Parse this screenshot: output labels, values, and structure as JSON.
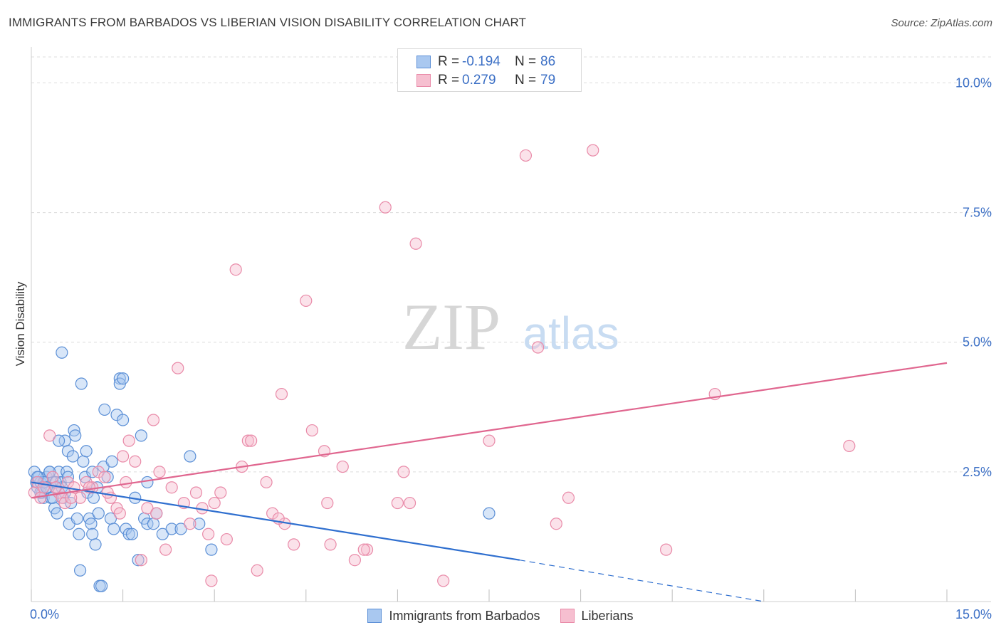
{
  "title": "IMMIGRANTS FROM BARBADOS VS LIBERIAN VISION DISABILITY CORRELATION CHART",
  "source": "Source: ZipAtlas.com",
  "watermark": {
    "zip": "ZIP",
    "atlas": "atlas"
  },
  "legend_top": [
    {
      "r_label": "R =",
      "r_value": "-0.194",
      "n_label": "N =",
      "n_value": "86"
    },
    {
      "r_label": "R =",
      "r_value": "0.279",
      "n_label": "N =",
      "n_value": "79"
    }
  ],
  "legend_bottom": [
    "Immigrants from Barbados",
    "Liberians"
  ],
  "colors": {
    "blue_fill": "#a9c8f0",
    "blue_stroke": "#5b8fd6",
    "blue_line": "#2f6fcf",
    "pink_fill": "#f6bfd0",
    "pink_stroke": "#e98aa8",
    "pink_line": "#e0668f",
    "tick_label": "#3b6fc5",
    "grid": "#dcdcdc"
  },
  "chart_data": {
    "type": "scatter",
    "xlabel": "",
    "ylabel": "Vision Disability",
    "xlim": [
      0,
      15
    ],
    "ylim": [
      0,
      10.5
    ],
    "x_tick_labels": [
      "0.0%",
      "15.0%"
    ],
    "y_ticks": [
      2.5,
      5.0,
      7.5,
      10.0
    ],
    "y_tick_labels": [
      "2.5%",
      "5.0%",
      "7.5%",
      "10.0%"
    ],
    "series": [
      {
        "name": "Immigrants from Barbados",
        "color": "blue",
        "trend": {
          "x": [
            0,
            8.0
          ],
          "y": [
            2.3,
            0.8
          ],
          "dashed_to": [
            12.0,
            0.0
          ]
        },
        "points": [
          [
            0.05,
            2.5
          ],
          [
            0.08,
            2.3
          ],
          [
            0.1,
            2.2
          ],
          [
            0.12,
            2.4
          ],
          [
            0.15,
            2.3
          ],
          [
            0.18,
            2.1
          ],
          [
            0.2,
            2.0
          ],
          [
            0.22,
            2.3
          ],
          [
            0.25,
            2.4
          ],
          [
            0.28,
            2.2
          ],
          [
            0.3,
            2.5
          ],
          [
            0.32,
            2.0
          ],
          [
            0.35,
            2.3
          ],
          [
            0.38,
            1.8
          ],
          [
            0.4,
            2.2
          ],
          [
            0.42,
            1.7
          ],
          [
            0.45,
            2.5
          ],
          [
            0.48,
            2.3
          ],
          [
            0.5,
            2.2
          ],
          [
            0.52,
            2.0
          ],
          [
            0.55,
            3.1
          ],
          [
            0.58,
            2.5
          ],
          [
            0.6,
            2.9
          ],
          [
            0.62,
            1.5
          ],
          [
            0.65,
            1.9
          ],
          [
            0.68,
            2.8
          ],
          [
            0.7,
            3.3
          ],
          [
            0.72,
            3.2
          ],
          [
            0.75,
            1.6
          ],
          [
            0.78,
            1.3
          ],
          [
            0.8,
            0.6
          ],
          [
            0.82,
            4.2
          ],
          [
            0.85,
            2.7
          ],
          [
            0.88,
            2.4
          ],
          [
            0.9,
            2.9
          ],
          [
            0.92,
            2.1
          ],
          [
            0.95,
            1.6
          ],
          [
            0.98,
            1.5
          ],
          [
            1.0,
            1.3
          ],
          [
            1.02,
            2.0
          ],
          [
            1.05,
            1.1
          ],
          [
            1.08,
            2.2
          ],
          [
            1.1,
            1.7
          ],
          [
            1.12,
            0.3
          ],
          [
            1.15,
            0.3
          ],
          [
            1.18,
            2.6
          ],
          [
            1.2,
            3.7
          ],
          [
            1.25,
            2.4
          ],
          [
            1.3,
            1.6
          ],
          [
            1.32,
            2.7
          ],
          [
            1.35,
            1.4
          ],
          [
            1.4,
            3.6
          ],
          [
            1.45,
            4.3
          ],
          [
            1.5,
            3.5
          ],
          [
            1.55,
            1.4
          ],
          [
            1.6,
            1.3
          ],
          [
            1.7,
            2.0
          ],
          [
            1.75,
            0.8
          ],
          [
            1.8,
            3.2
          ],
          [
            1.85,
            1.6
          ],
          [
            1.9,
            1.5
          ],
          [
            2.0,
            1.5
          ],
          [
            2.05,
            1.7
          ],
          [
            2.15,
            1.3
          ],
          [
            2.3,
            1.4
          ],
          [
            2.45,
            1.4
          ],
          [
            2.6,
            2.8
          ],
          [
            2.75,
            1.5
          ],
          [
            2.95,
            1.0
          ],
          [
            0.5,
            4.8
          ],
          [
            1.45,
            4.2
          ],
          [
            1.5,
            4.3
          ],
          [
            0.45,
            3.1
          ],
          [
            0.2,
            2.3
          ],
          [
            0.3,
            2.5
          ],
          [
            0.15,
            2.1
          ],
          [
            0.25,
            2.2
          ],
          [
            0.35,
            2.0
          ],
          [
            0.1,
            2.4
          ],
          [
            0.4,
            2.3
          ],
          [
            0.55,
            2.1
          ],
          [
            0.6,
            2.4
          ],
          [
            1.0,
            2.5
          ],
          [
            1.65,
            1.3
          ],
          [
            1.9,
            2.3
          ],
          [
            7.5,
            1.7
          ]
        ]
      },
      {
        "name": "Liberians",
        "color": "pink",
        "trend": {
          "x": [
            0,
            15.0
          ],
          "y": [
            2.0,
            4.6
          ]
        },
        "points": [
          [
            0.05,
            2.1
          ],
          [
            0.1,
            2.3
          ],
          [
            0.15,
            2.0
          ],
          [
            0.2,
            2.2
          ],
          [
            0.3,
            3.2
          ],
          [
            0.35,
            2.4
          ],
          [
            0.45,
            2.1
          ],
          [
            0.5,
            2.0
          ],
          [
            0.55,
            1.9
          ],
          [
            0.6,
            2.3
          ],
          [
            0.7,
            2.2
          ],
          [
            0.8,
            2.0
          ],
          [
            0.9,
            2.3
          ],
          [
            1.0,
            2.2
          ],
          [
            1.1,
            2.5
          ],
          [
            1.2,
            2.4
          ],
          [
            1.3,
            2.0
          ],
          [
            1.4,
            1.8
          ],
          [
            1.5,
            2.8
          ],
          [
            1.55,
            2.3
          ],
          [
            1.6,
            3.1
          ],
          [
            1.7,
            2.7
          ],
          [
            1.8,
            0.8
          ],
          [
            1.9,
            1.8
          ],
          [
            2.0,
            3.5
          ],
          [
            2.05,
            1.7
          ],
          [
            2.1,
            2.5
          ],
          [
            2.2,
            1.0
          ],
          [
            2.3,
            2.2
          ],
          [
            2.4,
            4.5
          ],
          [
            2.5,
            1.9
          ],
          [
            2.6,
            1.5
          ],
          [
            2.7,
            2.1
          ],
          [
            2.8,
            1.8
          ],
          [
            2.9,
            1.3
          ],
          [
            3.0,
            1.9
          ],
          [
            3.1,
            2.1
          ],
          [
            3.2,
            1.2
          ],
          [
            3.35,
            6.4
          ],
          [
            3.45,
            2.6
          ],
          [
            3.55,
            3.1
          ],
          [
            3.7,
            0.6
          ],
          [
            3.85,
            2.3
          ],
          [
            3.95,
            1.7
          ],
          [
            4.1,
            4.0
          ],
          [
            4.15,
            1.5
          ],
          [
            4.3,
            1.1
          ],
          [
            4.5,
            5.8
          ],
          [
            4.6,
            3.3
          ],
          [
            4.8,
            2.9
          ],
          [
            4.9,
            1.1
          ],
          [
            5.1,
            2.6
          ],
          [
            5.3,
            0.8
          ],
          [
            5.5,
            1.0
          ],
          [
            5.8,
            7.6
          ],
          [
            6.0,
            1.9
          ],
          [
            6.1,
            2.5
          ],
          [
            6.3,
            6.9
          ],
          [
            6.75,
            0.4
          ],
          [
            7.5,
            3.1
          ],
          [
            8.1,
            8.6
          ],
          [
            8.3,
            4.9
          ],
          [
            8.6,
            1.5
          ],
          [
            8.8,
            2.0
          ],
          [
            9.2,
            8.7
          ],
          [
            10.4,
            1.0
          ],
          [
            11.2,
            4.0
          ],
          [
            13.4,
            3.0
          ],
          [
            0.4,
            2.2
          ],
          [
            0.65,
            2.0
          ],
          [
            0.95,
            2.2
          ],
          [
            1.25,
            2.1
          ],
          [
            1.45,
            1.7
          ],
          [
            2.95,
            0.4
          ],
          [
            3.6,
            3.1
          ],
          [
            4.05,
            1.6
          ],
          [
            4.85,
            1.9
          ],
          [
            5.45,
            1.0
          ],
          [
            6.2,
            1.9
          ]
        ]
      }
    ]
  }
}
